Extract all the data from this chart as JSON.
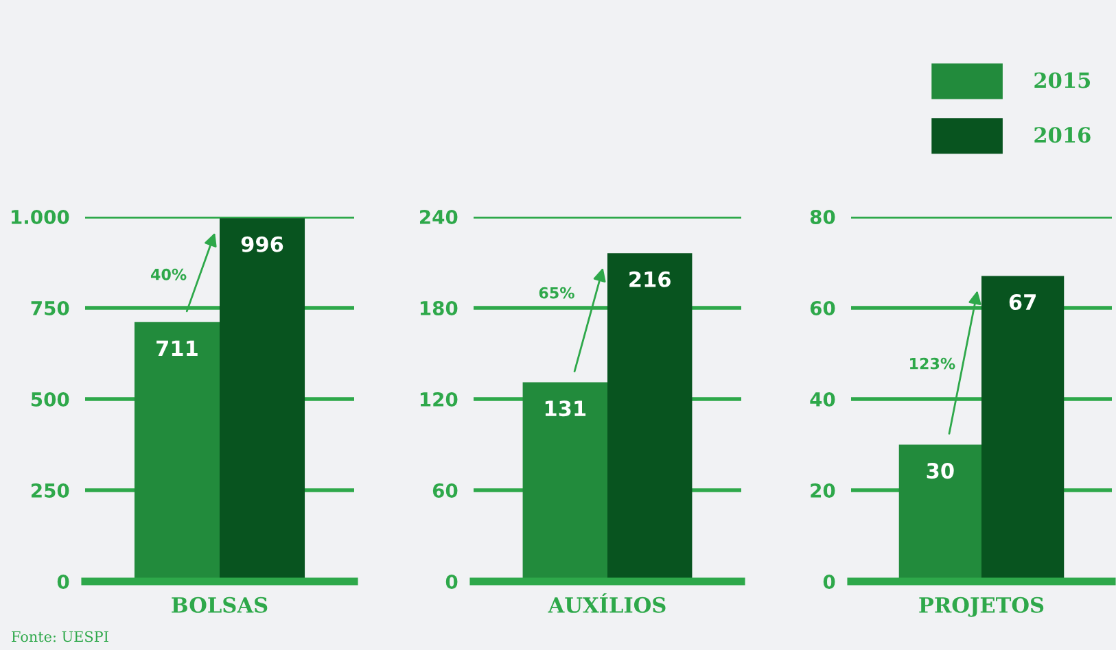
{
  "chart_data": [
    {
      "type": "bar",
      "categories": [
        "BOLSAS"
      ],
      "series": [
        {
          "color": "#228b3c",
          "values": [
            711
          ]
        },
        {
          "color": "#08541f",
          "values": [
            996
          ]
        }
      ],
      "ylim": [
        0,
        1000
      ],
      "yticks": [
        0,
        250,
        500,
        750,
        {
          "value": 1000,
          "label": "1.000"
        }
      ],
      "grid": "y",
      "data_labels": true,
      "legend": false,
      "annotations": [
        {
          "text": "40%",
          "x": "BOLSAS",
          "y": 838
        },
        "Fonte: UESPI"
      ]
    },
    {
      "type": "bar",
      "categories": [
        "AUXÍLIOS"
      ],
      "series": [
        {
          "color": "#228b3c",
          "values": [
            131
          ]
        },
        {
          "color": "#08541f",
          "values": [
            216
          ]
        }
      ],
      "ylim": [
        0,
        240
      ],
      "yticks": [
        0,
        60,
        120,
        180,
        240
      ],
      "grid": "y",
      "data_labels": true,
      "legend": false,
      "annotations": [
        {
          "text": "65%",
          "x": "AUXÍLIOS",
          "y": 189
        }
      ]
    },
    {
      "type": "bar",
      "categories": [
        "PROJETOS"
      ],
      "series": [
        {
          "name": "2015",
          "color": "#228b3c",
          "values": [
            30
          ]
        },
        {
          "name": "2016",
          "color": "#08541f",
          "values": [
            67
          ]
        }
      ],
      "ylim": [
        0,
        80
      ],
      "yticks": [
        0,
        20,
        40,
        60,
        80
      ],
      "grid": "y",
      "data_labels": true,
      "legend": "top right",
      "annotations": [
        {
          "text": "123%",
          "x": "PROJETOS",
          "y": 47.5
        }
      ]
    }
  ]
}
